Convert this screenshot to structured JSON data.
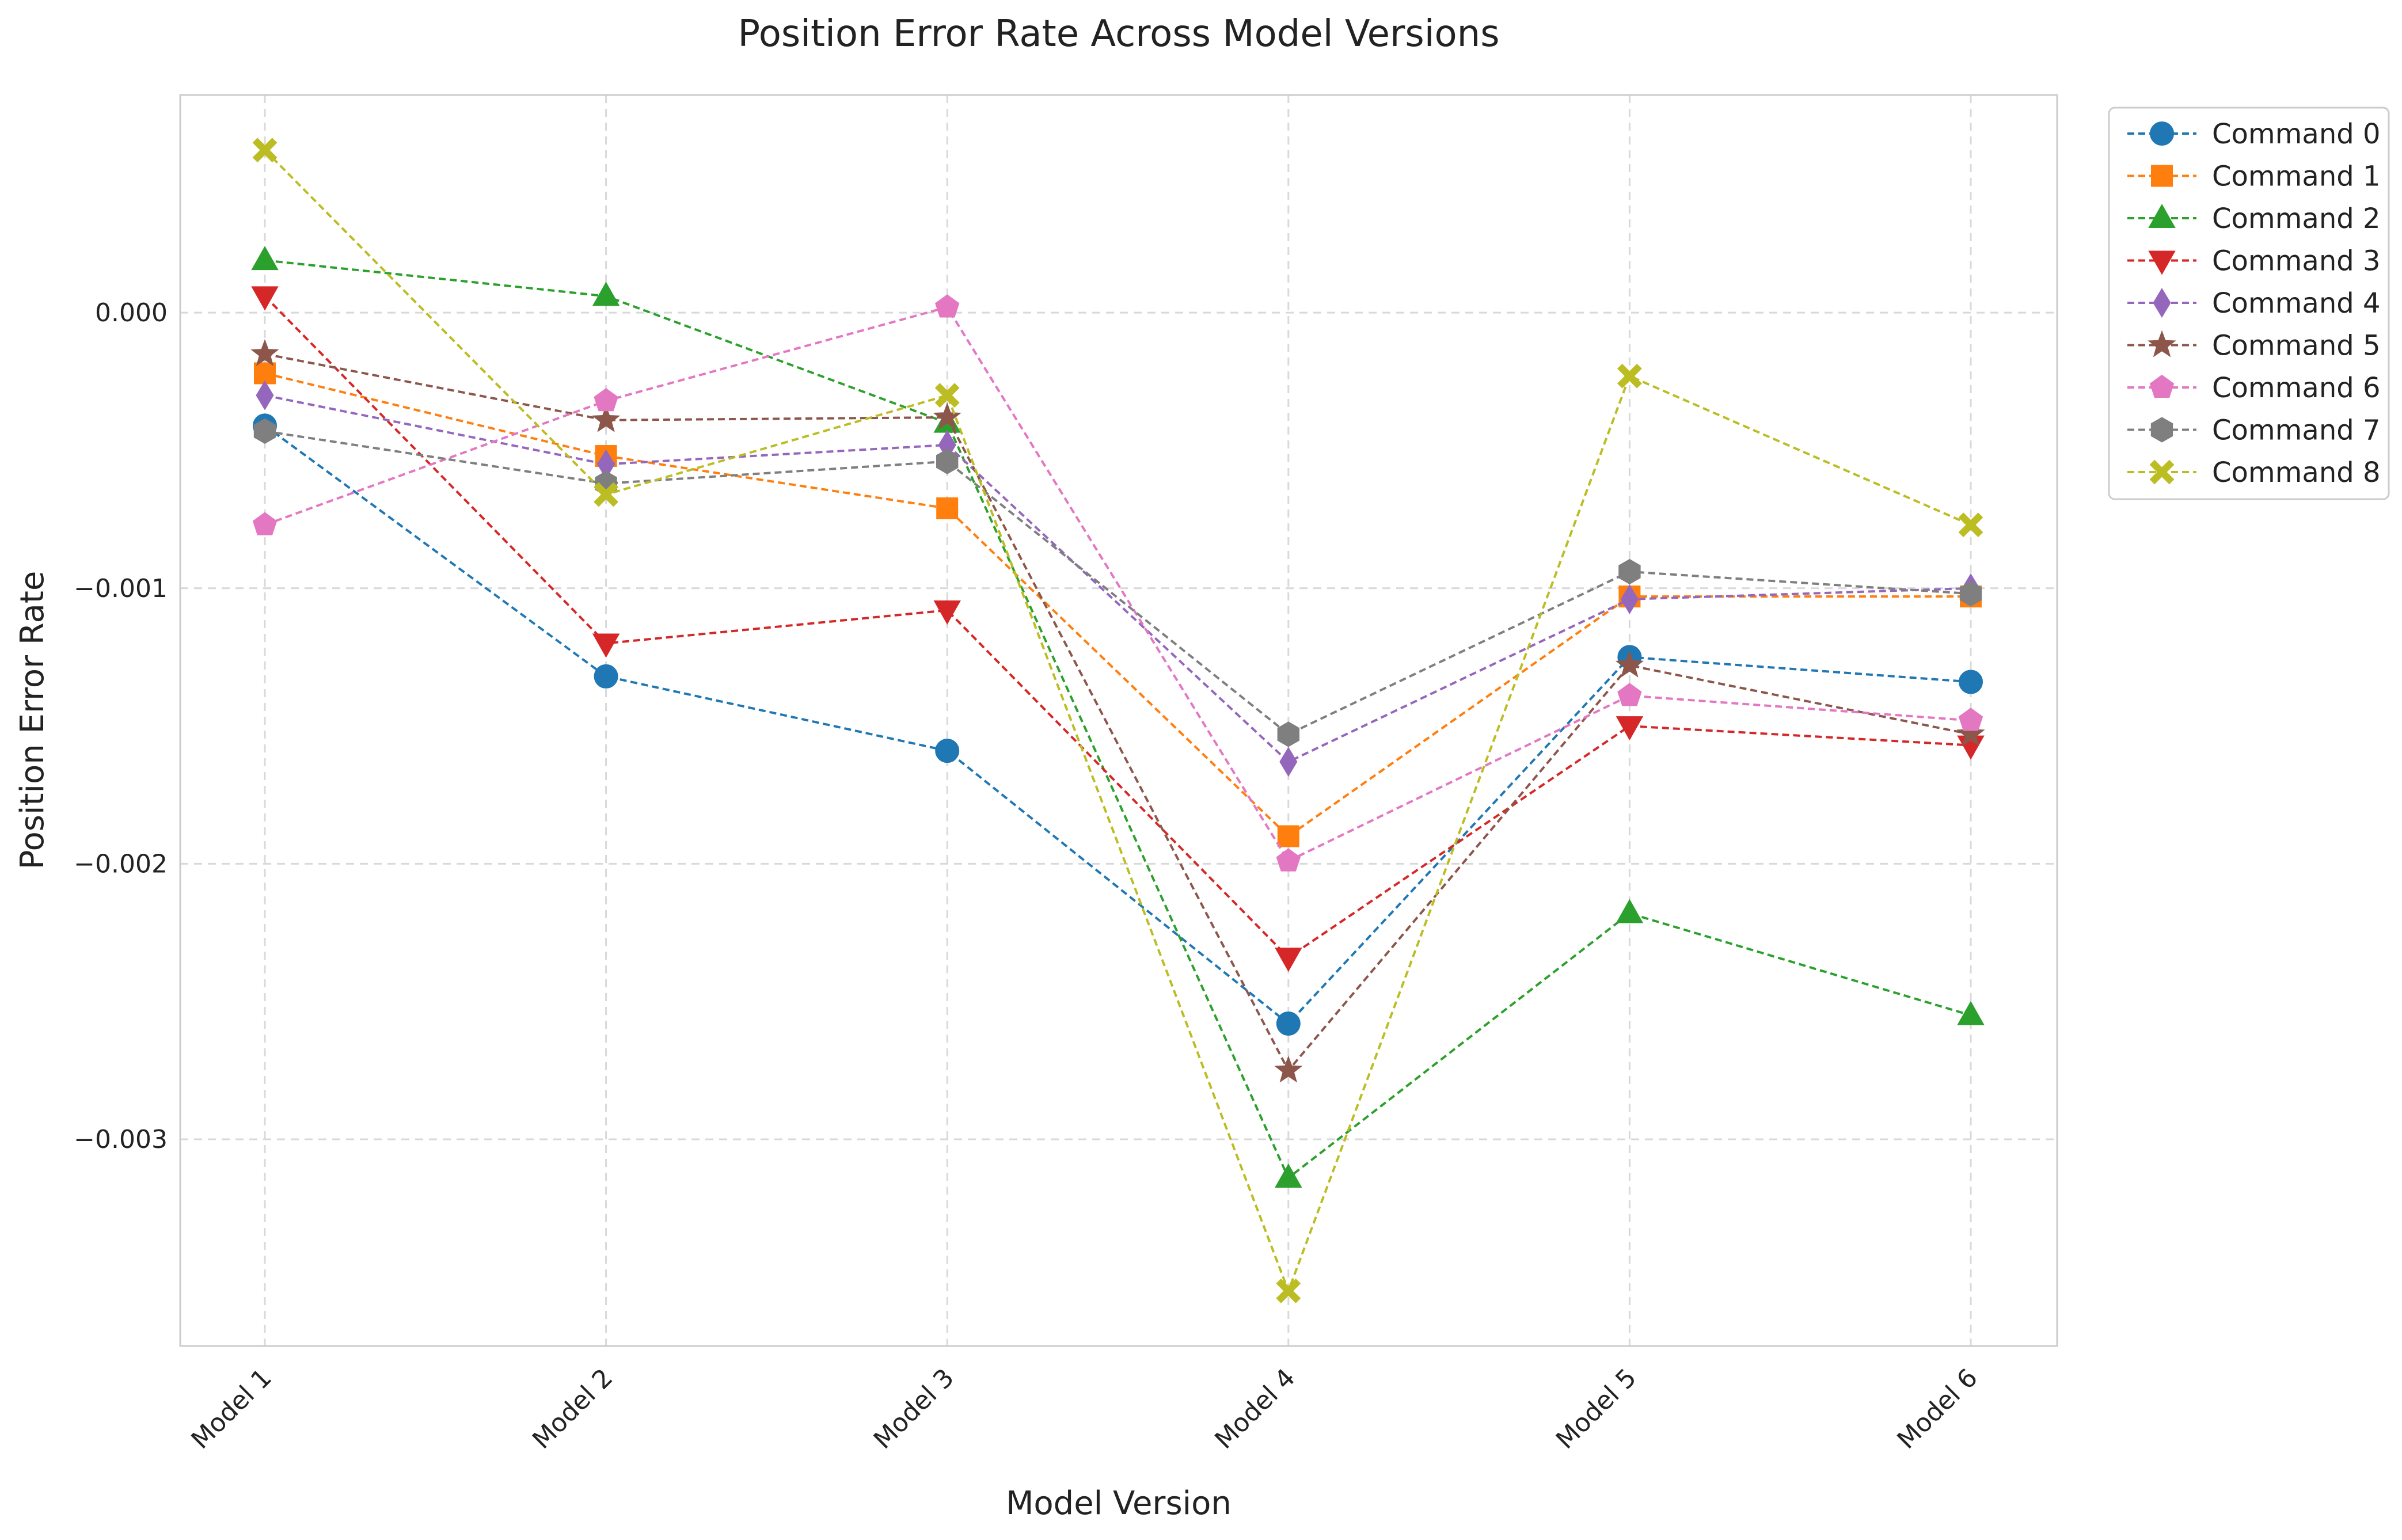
{
  "chart_data": {
    "type": "line",
    "title": "Position Error Rate Across Model Versions",
    "xlabel": "Model Version",
    "ylabel": "Position Error Rate",
    "categories": [
      "Model 1",
      "Model 2",
      "Model 3",
      "Model 4",
      "Model 5",
      "Model 6"
    ],
    "ylim": [
      -0.00375,
      0.00079
    ],
    "yticks": [
      0.0,
      -0.001,
      -0.002,
      -0.003
    ],
    "ytick_labels": [
      "0.000",
      "−0.001",
      "−0.002",
      "−0.003"
    ],
    "grid": true,
    "legend_placement": "outside-top-right",
    "series": [
      {
        "name": "Command 0",
        "color": "#1f77b4",
        "marker": "circle",
        "values": [
          -0.00041,
          -0.00132,
          -0.00159,
          -0.00258,
          -0.00125,
          -0.00134
        ]
      },
      {
        "name": "Command 1",
        "color": "#ff7f0e",
        "marker": "square",
        "values": [
          -0.00022,
          -0.00052,
          -0.00071,
          -0.0019,
          -0.00103,
          -0.00103
        ]
      },
      {
        "name": "Command 2",
        "color": "#2ca02c",
        "marker": "triangle-up",
        "values": [
          0.00019,
          6e-05,
          -0.0004,
          -0.00314,
          -0.00218,
          -0.00255
        ]
      },
      {
        "name": "Command 3",
        "color": "#d62728",
        "marker": "triangle-down",
        "values": [
          6e-05,
          -0.0012,
          -0.00108,
          -0.00234,
          -0.0015,
          -0.00157
        ]
      },
      {
        "name": "Command 4",
        "color": "#9467bd",
        "marker": "diamond",
        "values": [
          -0.0003,
          -0.00055,
          -0.00048,
          -0.00163,
          -0.00104,
          -0.001
        ]
      },
      {
        "name": "Command 5",
        "color": "#8c564b",
        "marker": "star",
        "values": [
          -0.00015,
          -0.00039,
          -0.00038,
          -0.00275,
          -0.00128,
          -0.00153
        ]
      },
      {
        "name": "Command 6",
        "color": "#e377c2",
        "marker": "pentagon",
        "values": [
          -0.00077,
          -0.00032,
          2e-05,
          -0.00199,
          -0.00139,
          -0.00148
        ]
      },
      {
        "name": "Command 7",
        "color": "#7f7f7f",
        "marker": "hexagon",
        "values": [
          -0.00043,
          -0.00062,
          -0.00054,
          -0.00153,
          -0.00094,
          -0.00102
        ]
      },
      {
        "name": "Command 8",
        "color": "#bcbd22",
        "marker": "x-filled",
        "values": [
          0.00059,
          -0.00066,
          -0.0003,
          -0.00355,
          -0.00023,
          -0.00077
        ]
      }
    ]
  }
}
